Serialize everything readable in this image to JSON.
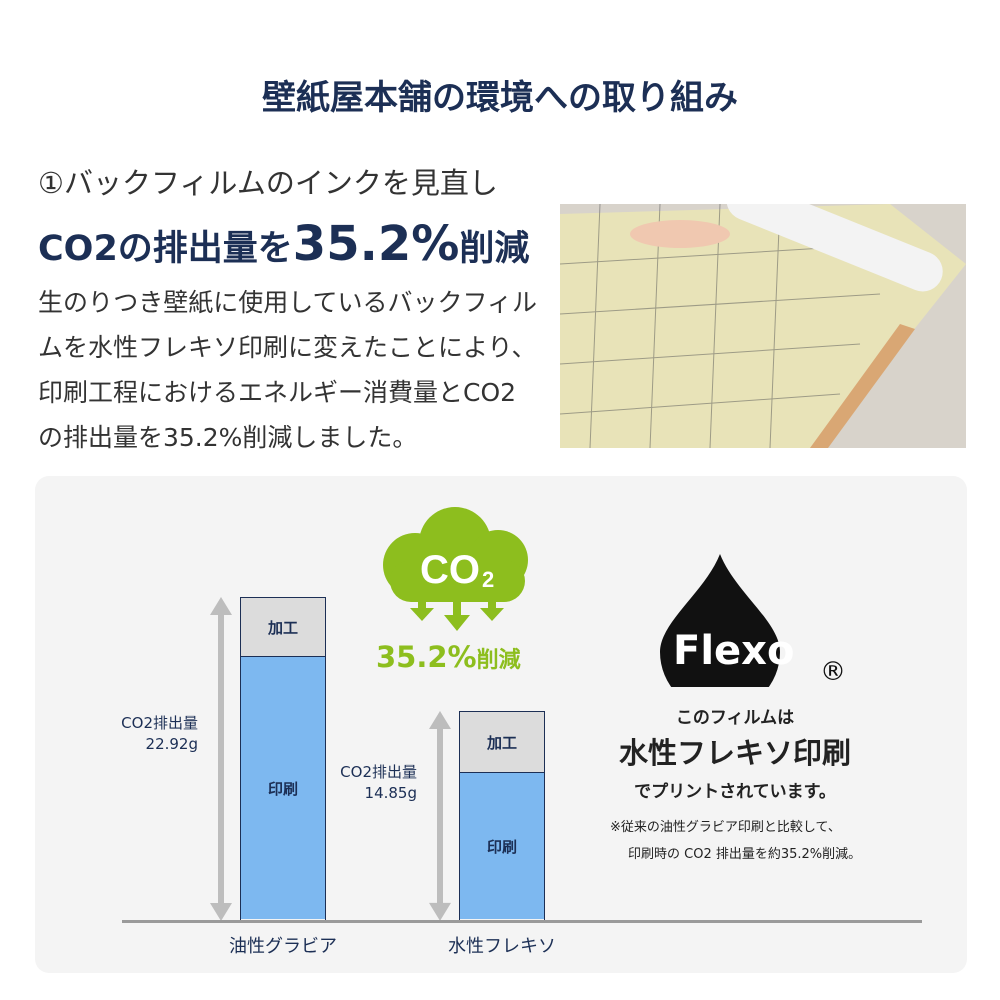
{
  "header": {
    "title": "壁紙屋本舗の環境への取り組み"
  },
  "section": {
    "subtitle": "①バックフィルムのインクを見直し",
    "headline_pre": "CO2の排出量を",
    "headline_value": "35.2%",
    "headline_post": "削減",
    "body": "生のりつき壁紙に使用しているバックフィルムを水性フレキソ印刷に変えたことにより、印刷工程におけるエネルギー消費量とCO2の排出量を35.2%削減しました。"
  },
  "badge": {
    "co2_label": "CO",
    "co2_sub": "2",
    "reduction_value": "35.2%",
    "reduction_label": "削減",
    "color": "#8dbe1e"
  },
  "chart_data": {
    "type": "bar",
    "stacked": true,
    "categories": [
      "油性グラビア",
      "水性フレキソ"
    ],
    "series": [
      {
        "name": "印刷",
        "values": [
          18.7,
          10.5
        ],
        "color": "#7db8f0"
      },
      {
        "name": "加工",
        "values": [
          4.2,
          4.3
        ],
        "color": "#dcdcdc"
      }
    ],
    "totals_label": "CO2排出量",
    "totals": [
      "22.92g",
      "14.85g"
    ],
    "ylim": [
      0,
      23
    ]
  },
  "flexo": {
    "logo_text": "Flexo",
    "registered": "®",
    "line1": "このフィルムは",
    "line2": "水性フレキソ印刷",
    "line3": "でプリントされています。",
    "note1": "※従来の油性グラビア印刷と比較して、",
    "note2": "印刷時の CO2 排出量を約35.2%削減。"
  }
}
